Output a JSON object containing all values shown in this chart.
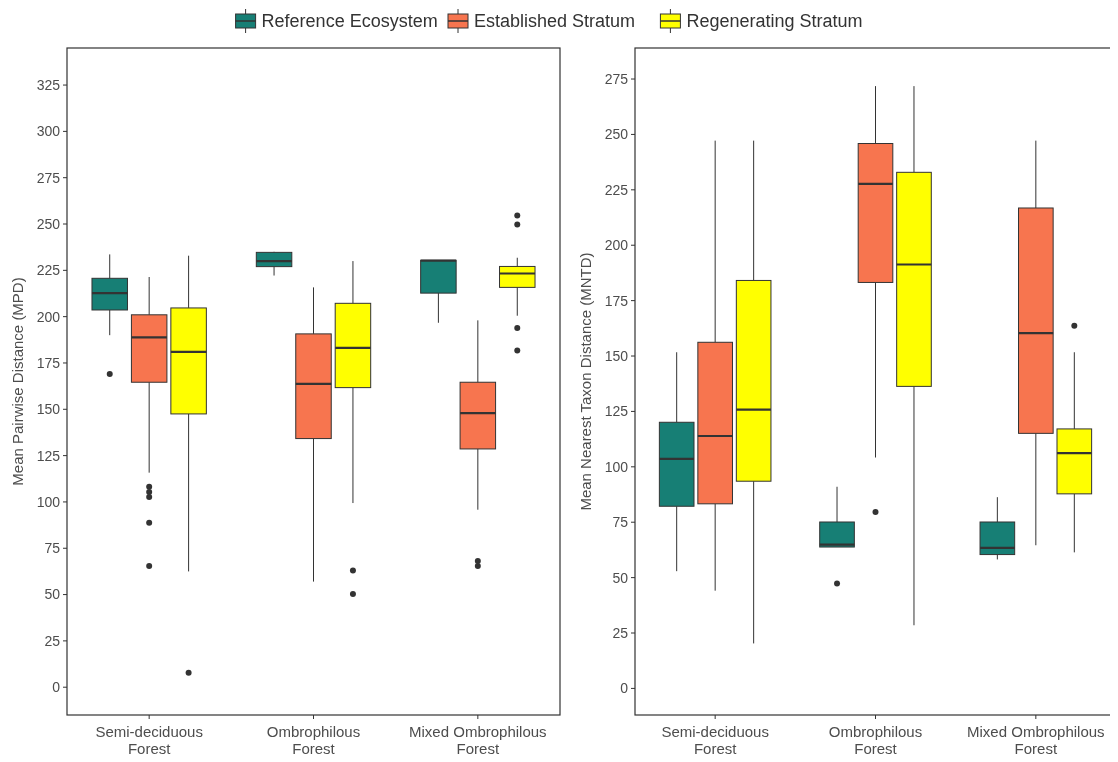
{
  "chart_data": [
    {
      "type": "box",
      "ylabel": "Mean Pairwise Distance (MPD)",
      "categories": [
        "Semi-deciduous Forest",
        "Ombrophilous Forest",
        "Mixed Ombrophilous Forest"
      ],
      "ylim": [
        -15,
        345
      ],
      "yticks": [
        0,
        25,
        50,
        75,
        100,
        125,
        150,
        175,
        200,
        225,
        250,
        275,
        300,
        325
      ],
      "legend": "top",
      "series": [
        {
          "name": "Reference Ecosystem",
          "color": "#177f75",
          "boxes": [
            {
              "low": 190,
              "q1": 203.6,
              "median": 212.7,
              "q3": 220.7,
              "high": 233.6,
              "outliers": [
                169
              ]
            },
            {
              "low": 222.2,
              "q1": 227,
              "median": 230,
              "q3": 234.7,
              "high": 235
            },
            {
              "low": 196.7,
              "q1": 212.7,
              "median": 230.2,
              "q3": 230.4,
              "high": 230.5
            }
          ]
        },
        {
          "name": "Established Stratum",
          "color": "#f7754f",
          "boxes": [
            {
              "low": 115.8,
              "q1": 164.6,
              "median": 188.8,
              "q3": 201,
              "high": 221.4,
              "outliers": [
                108.2,
                105.4,
                102.7,
                88.7,
                65.4
              ]
            },
            {
              "low": 57,
              "q1": 134.2,
              "median": 163.7,
              "q3": 190.7,
              "high": 215.8
            },
            {
              "low": 95.8,
              "q1": 128.6,
              "median": 147.9,
              "q3": 164.6,
              "high": 198,
              "outliers": [
                68.1,
                65.4
              ]
            }
          ]
        },
        {
          "name": "Regenerating Stratum",
          "color": "#ffff00",
          "boxes": [
            {
              "low": 62.5,
              "q1": 147.5,
              "median": 181,
              "q3": 204.7,
              "high": 232.9,
              "outliers": [
                7.8
              ]
            },
            {
              "low": 99.4,
              "q1": 161.7,
              "median": 183.2,
              "q3": 207.2,
              "high": 230,
              "outliers": [
                63,
                50.3
              ]
            },
            {
              "low": 200.5,
              "q1": 215.8,
              "median": 223.3,
              "q3": 227.1,
              "high": 231.8,
              "outliers": [
                254.6,
                249.7,
                193.9,
                181.7
              ]
            }
          ]
        }
      ]
    },
    {
      "type": "box",
      "ylabel": "Mean Nearest Taxon Distance (MNTD)",
      "categories": [
        "Semi-deciduous Forest",
        "Ombrophilous Forest",
        "Mixed Ombrophilous Forest"
      ],
      "ylim": [
        -12,
        289
      ],
      "yticks": [
        0,
        25,
        50,
        75,
        100,
        125,
        150,
        175,
        200,
        225,
        250,
        275
      ],
      "series": [
        {
          "color": "#177f75",
          "boxes": [
            {
              "low": 52.9,
              "q1": 82.2,
              "median": 103.6,
              "q3": 120.1,
              "high": 151.7
            },
            {
              "low": 63.8,
              "q1": 63.8,
              "median": 64.9,
              "q3": 75.1,
              "high": 91,
              "outliers": [
                47.3
              ]
            },
            {
              "low": 58.2,
              "q1": 60.4,
              "median": 63.4,
              "q3": 75.1,
              "high": 86.3
            }
          ]
        },
        {
          "color": "#f7754f",
          "boxes": [
            {
              "low": 44.1,
              "q1": 83.3,
              "median": 113.9,
              "q3": 156.2,
              "high": 247.2
            },
            {
              "low": 104.2,
              "q1": 183.2,
              "median": 227.7,
              "q3": 245.9,
              "high": 271.8,
              "outliers": [
                79.6
              ]
            },
            {
              "low": 64.6,
              "q1": 115.1,
              "median": 160.3,
              "q3": 216.8,
              "high": 247.2
            }
          ]
        },
        {
          "color": "#ffff00",
          "boxes": [
            {
              "low": 20.3,
              "q1": 93.5,
              "median": 125.8,
              "q3": 184.1,
              "high": 247.2
            },
            {
              "low": 28.5,
              "q1": 136.3,
              "median": 191.3,
              "q3": 232.9,
              "high": 271.8
            },
            {
              "low": 61.4,
              "q1": 87.8,
              "median": 106.2,
              "q3": 117.1,
              "high": 151.7,
              "outliers": [
                163.7
              ]
            }
          ]
        }
      ]
    }
  ]
}
